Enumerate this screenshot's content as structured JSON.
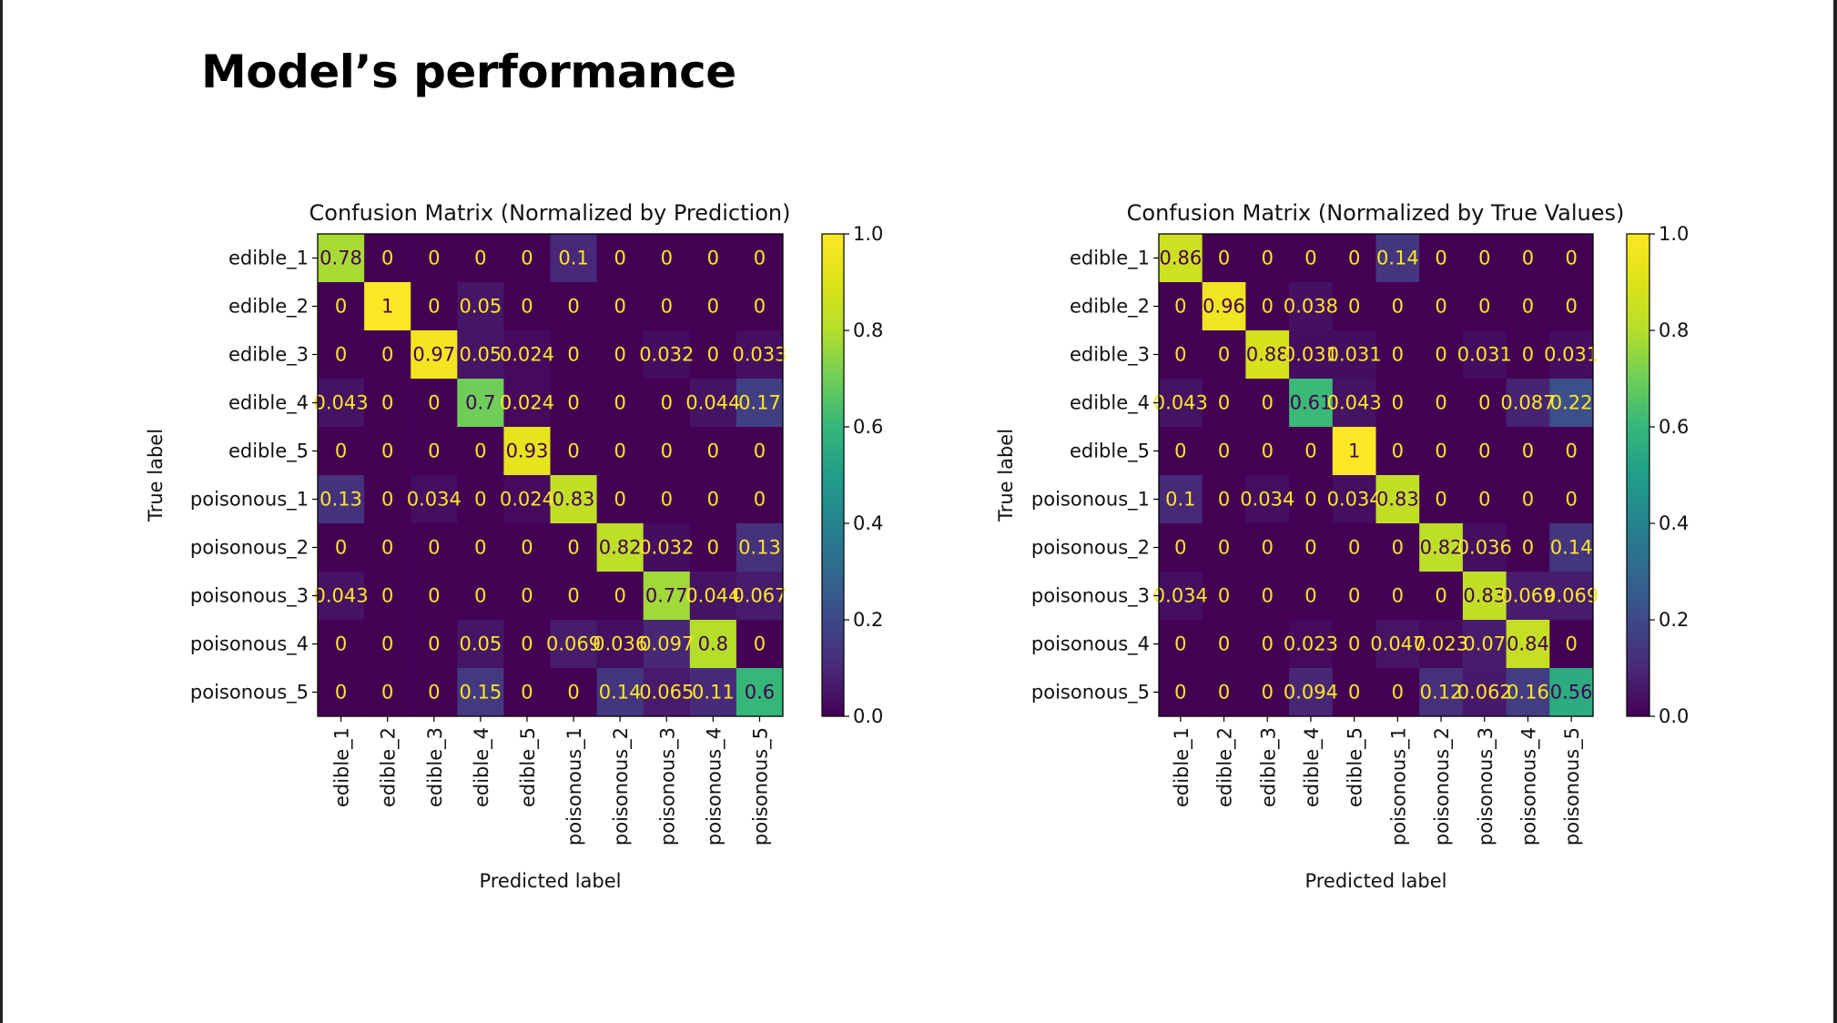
{
  "page": {
    "title": "Model’s performance"
  },
  "chart_data": [
    {
      "type": "heatmap",
      "title": "Confusion Matrix (Normalized by Prediction)",
      "xlabel": "Predicted label",
      "ylabel": "True label",
      "colormap": "viridis",
      "colorbar": {
        "range": [
          0.0,
          1.0
        ],
        "ticks": [
          "0.0",
          "0.2",
          "0.4",
          "0.6",
          "0.8",
          "1.0"
        ]
      },
      "x_categories": [
        "edible_1",
        "edible_2",
        "edible_3",
        "edible_4",
        "edible_5",
        "poisonous_1",
        "poisonous_2",
        "poisonous_3",
        "poisonous_4",
        "poisonous_5"
      ],
      "y_categories": [
        "edible_1",
        "edible_2",
        "edible_3",
        "edible_4",
        "edible_5",
        "poisonous_1",
        "poisonous_2",
        "poisonous_3",
        "poisonous_4",
        "poisonous_5"
      ],
      "values": [
        [
          0.78,
          0,
          0,
          0,
          0,
          0.1,
          0,
          0,
          0,
          0
        ],
        [
          0,
          1,
          0,
          0.05,
          0,
          0,
          0,
          0,
          0,
          0
        ],
        [
          0,
          0,
          0.97,
          0.05,
          0.024,
          0,
          0,
          0.032,
          0,
          0.033
        ],
        [
          0.043,
          0,
          0,
          0.7,
          0.024,
          0,
          0,
          0,
          0.044,
          0.17
        ],
        [
          0,
          0,
          0,
          0,
          0.93,
          0,
          0,
          0,
          0,
          0
        ],
        [
          0.13,
          0,
          0.034,
          0,
          0.024,
          0.83,
          0,
          0,
          0,
          0
        ],
        [
          0,
          0,
          0,
          0,
          0,
          0,
          0.82,
          0.032,
          0,
          0.13
        ],
        [
          0.043,
          0,
          0,
          0,
          0,
          0,
          0,
          0.77,
          0.044,
          0.067
        ],
        [
          0,
          0,
          0,
          0.05,
          0,
          0.069,
          0.036,
          0.097,
          0.8,
          0
        ],
        [
          0,
          0,
          0,
          0.15,
          0,
          0,
          0.14,
          0.065,
          0.11,
          0.6
        ]
      ],
      "labels": [
        [
          "0.78",
          "0",
          "0",
          "0",
          "0",
          "0.1",
          "0",
          "0",
          "0",
          "0"
        ],
        [
          "0",
          "1",
          "0",
          "0.05",
          "0",
          "0",
          "0",
          "0",
          "0",
          "0"
        ],
        [
          "0",
          "0",
          "0.97",
          "0.05",
          "0.024",
          "0",
          "0",
          "0.032",
          "0",
          "0.033"
        ],
        [
          "0.043",
          "0",
          "0",
          "0.7",
          "0.024",
          "0",
          "0",
          "0",
          "0.044",
          "0.17"
        ],
        [
          "0",
          "0",
          "0",
          "0",
          "0.93",
          "0",
          "0",
          "0",
          "0",
          "0"
        ],
        [
          "0.13",
          "0",
          "0.034",
          "0",
          "0.024",
          "0.83",
          "0",
          "0",
          "0",
          "0"
        ],
        [
          "0",
          "0",
          "0",
          "0",
          "0",
          "0",
          "0.82",
          "0.032",
          "0",
          "0.13"
        ],
        [
          "0.043",
          "0",
          "0",
          "0",
          "0",
          "0",
          "0",
          "0.77",
          "0.044",
          "0.067"
        ],
        [
          "0",
          "0",
          "0",
          "0.05",
          "0",
          "0.069",
          "0.036",
          "0.097",
          "0.8",
          "0"
        ],
        [
          "0",
          "0",
          "0",
          "0.15",
          "0",
          "0",
          "0.14",
          "0.065",
          "0.11",
          "0.6"
        ]
      ]
    },
    {
      "type": "heatmap",
      "title": "Confusion Matrix (Normalized by True Values)",
      "xlabel": "Predicted label",
      "ylabel": "True label",
      "colormap": "viridis",
      "colorbar": {
        "range": [
          0.0,
          1.0
        ],
        "ticks": [
          "0.0",
          "0.2",
          "0.4",
          "0.6",
          "0.8",
          "1.0"
        ]
      },
      "x_categories": [
        "edible_1",
        "edible_2",
        "edible_3",
        "edible_4",
        "edible_5",
        "poisonous_1",
        "poisonous_2",
        "poisonous_3",
        "poisonous_4",
        "poisonous_5"
      ],
      "y_categories": [
        "edible_1",
        "edible_2",
        "edible_3",
        "edible_4",
        "edible_5",
        "poisonous_1",
        "poisonous_2",
        "poisonous_3",
        "poisonous_4",
        "poisonous_5"
      ],
      "values": [
        [
          0.86,
          0,
          0,
          0,
          0,
          0.14,
          0,
          0,
          0,
          0
        ],
        [
          0,
          0.96,
          0,
          0.038,
          0,
          0,
          0,
          0,
          0,
          0
        ],
        [
          0,
          0,
          0.88,
          0.031,
          0.031,
          0,
          0,
          0.031,
          0,
          0.031
        ],
        [
          0.043,
          0,
          0,
          0.61,
          0.043,
          0,
          0,
          0,
          0.087,
          0.22
        ],
        [
          0,
          0,
          0,
          0,
          1,
          0,
          0,
          0,
          0,
          0
        ],
        [
          0.1,
          0,
          0.034,
          0,
          0.034,
          0.83,
          0,
          0,
          0,
          0
        ],
        [
          0,
          0,
          0,
          0,
          0,
          0,
          0.82,
          0.036,
          0,
          0.14
        ],
        [
          0.034,
          0,
          0,
          0,
          0,
          0,
          0,
          0.83,
          0.069,
          0.069
        ],
        [
          0,
          0,
          0,
          0.023,
          0,
          0.047,
          0.023,
          0.07,
          0.84,
          0
        ],
        [
          0,
          0,
          0,
          0.094,
          0,
          0,
          0.12,
          0.062,
          0.16,
          0.56
        ]
      ],
      "labels": [
        [
          "0.86",
          "0",
          "0",
          "0",
          "0",
          "0.14",
          "0",
          "0",
          "0",
          "0"
        ],
        [
          "0",
          "0.96",
          "0",
          "0.038",
          "0",
          "0",
          "0",
          "0",
          "0",
          "0"
        ],
        [
          "0",
          "0",
          "0.88",
          "0.031",
          "0.031",
          "0",
          "0",
          "0.031",
          "0",
          "0.031"
        ],
        [
          "0.043",
          "0",
          "0",
          "0.61",
          "0.043",
          "0",
          "0",
          "0",
          "0.087",
          "0.22"
        ],
        [
          "0",
          "0",
          "0",
          "0",
          "1",
          "0",
          "0",
          "0",
          "0",
          "0"
        ],
        [
          "0.1",
          "0",
          "0.034",
          "0",
          "0.034",
          "0.83",
          "0",
          "0",
          "0",
          "0"
        ],
        [
          "0",
          "0",
          "0",
          "0",
          "0",
          "0",
          "0.82",
          "0.036",
          "0",
          "0.14"
        ],
        [
          "0.034",
          "0",
          "0",
          "0",
          "0",
          "0",
          "0",
          "0.83",
          "0.069",
          "0.069"
        ],
        [
          "0",
          "0",
          "0",
          "0.023",
          "0",
          "0.047",
          "0.023",
          "0.07",
          "0.84",
          "0"
        ],
        [
          "0",
          "0",
          "0",
          "0.094",
          "0",
          "0",
          "0.12",
          "0.062",
          "0.16",
          "0.56"
        ]
      ]
    }
  ]
}
